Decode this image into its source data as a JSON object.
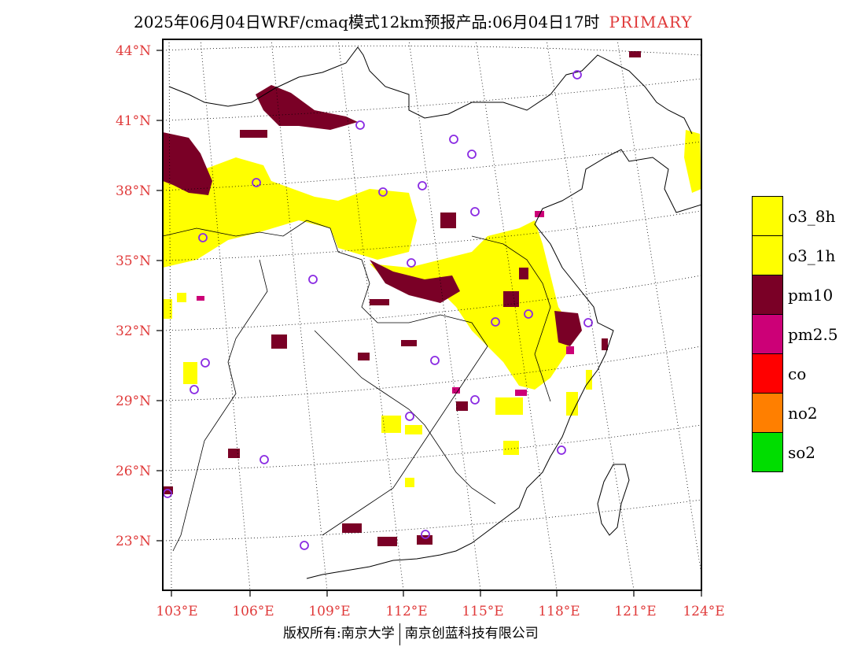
{
  "title": {
    "text": "2025年06月04日WRF/cmaq模式12km预报产品:06月04日17时",
    "tag": "PRIMARY"
  },
  "axes": {
    "lat_labels": [
      "44°N",
      "41°N",
      "38°N",
      "35°N",
      "32°N",
      "29°N",
      "26°N",
      "23°N"
    ],
    "lon_labels": [
      "103°E",
      "106°E",
      "109°E",
      "112°E",
      "115°E",
      "118°E",
      "121°E",
      "124°E"
    ]
  },
  "legend": [
    {
      "label": "o3_8h",
      "color": "#ffff00"
    },
    {
      "label": "o3_1h",
      "color": "#ffff00"
    },
    {
      "label": "pm10",
      "color": "#7a0026"
    },
    {
      "label": "pm2.5",
      "color": "#cc0077"
    },
    {
      "label": "co",
      "color": "#ff0000"
    },
    {
      "label": "no2",
      "color": "#ff7f00"
    },
    {
      "label": "so2",
      "color": "#00dd00"
    }
  ],
  "footer": {
    "left": "版权所有:南京大学",
    "right": "南京创蓝科技有限公司"
  },
  "colors": {
    "axis_text": "#e03a3a",
    "o3": "#ffff00",
    "pm10": "#7a0026",
    "pm25": "#cc0077",
    "station_marker": "#8a2be2"
  }
}
